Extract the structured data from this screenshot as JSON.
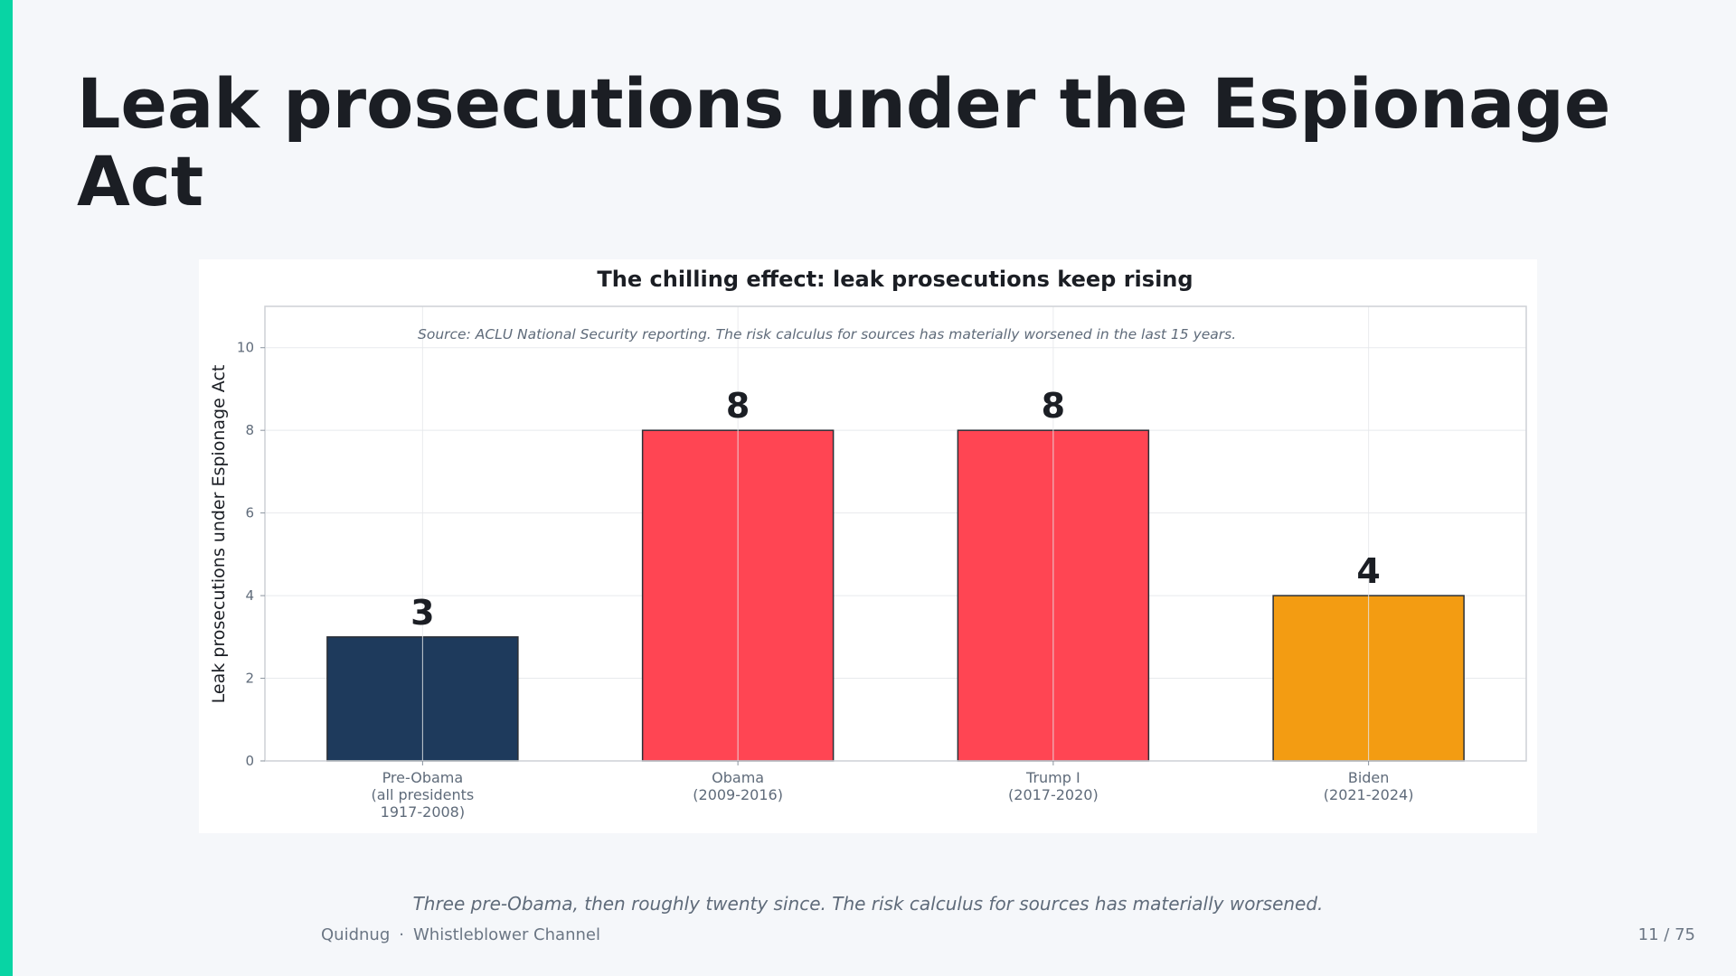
{
  "slide": {
    "title": "Leak prosecutions under the Espionage Act",
    "caption": "Three pre-Obama, then roughly twenty since. The risk calculus for sources has materially worsened.",
    "footer_brand": "Quidnug",
    "footer_separator": "·",
    "footer_section": "Whistleblower Channel",
    "page_number": "11 / 75",
    "accent_color": "#08d4a4"
  },
  "chart_data": {
    "type": "bar",
    "title": "The chilling effect: leak prosecutions keep rising",
    "annotation": "Source: ACLU National Security reporting. The risk calculus for sources has materially worsened in the last 15 years.",
    "xlabel": "",
    "ylabel": "Leak prosecutions under Espionage Act",
    "ylim": [
      0,
      11
    ],
    "yticks": [
      0,
      2,
      4,
      6,
      8,
      10
    ],
    "grid": true,
    "categories": [
      [
        "Pre-Obama",
        "(all presidents",
        "1917-2008)"
      ],
      [
        "Obama",
        "(2009-2016)"
      ],
      [
        "Trump I",
        "(2017-2020)"
      ],
      [
        "Biden",
        "(2021-2024)"
      ]
    ],
    "values": [
      3,
      8,
      8,
      4
    ],
    "colors": [
      "#1e3a5c",
      "#ff4553",
      "#ff4553",
      "#f39c12"
    ]
  }
}
